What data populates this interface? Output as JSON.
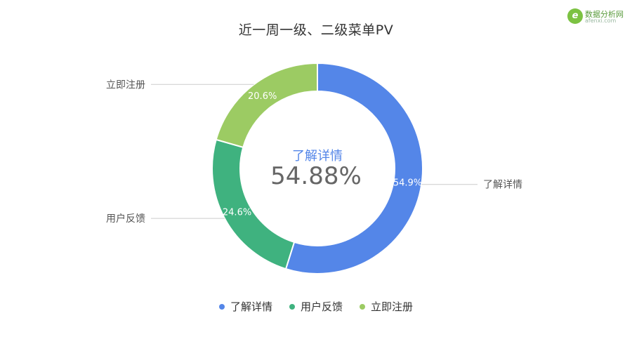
{
  "title": "近一周一级、二级菜单PV",
  "logo": {
    "mark": "e",
    "text": "数据分析网",
    "subtext": "afenxi.com"
  },
  "center_label": {
    "name": "了解详情",
    "value": "54.88%"
  },
  "chart_data": {
    "type": "pie",
    "variant": "donut",
    "title": "近一周一级、二级菜单PV",
    "legend_position": "bottom",
    "slices": [
      {
        "name": "了解详情",
        "value": 54.9,
        "label": "54.9%",
        "color": "#5486e8"
      },
      {
        "name": "用户反馈",
        "value": 24.6,
        "label": "24.6%",
        "color": "#3fb27f"
      },
      {
        "name": "立即注册",
        "value": 20.6,
        "label": "20.6%",
        "color": "#9ccb63"
      }
    ]
  }
}
